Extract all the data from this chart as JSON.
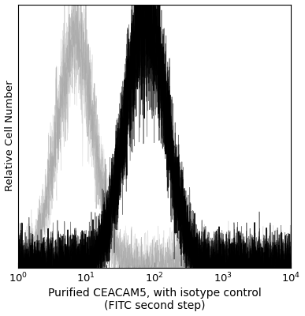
{
  "xlabel": "Purified CEACAM5, with isotype control\n(FITC second step)",
  "ylabel": "Relative Cell Number",
  "xlim": [
    1,
    10000
  ],
  "ylim": [
    0,
    1.05
  ],
  "background_color": "#ffffff",
  "isotype_peak": 7.0,
  "isotype_sigma": 0.27,
  "isotype_amplitude": 0.9,
  "antibody_peak": 75,
  "antibody_sigma": 0.3,
  "antibody_amplitude": 1.0,
  "isotype_color": "#aaaaaa",
  "antibody_color": "#000000",
  "noise_seed": 42,
  "xlabel_fontsize": 10,
  "ylabel_fontsize": 9.5,
  "tick_fontsize": 9.5,
  "n_points": 1500
}
